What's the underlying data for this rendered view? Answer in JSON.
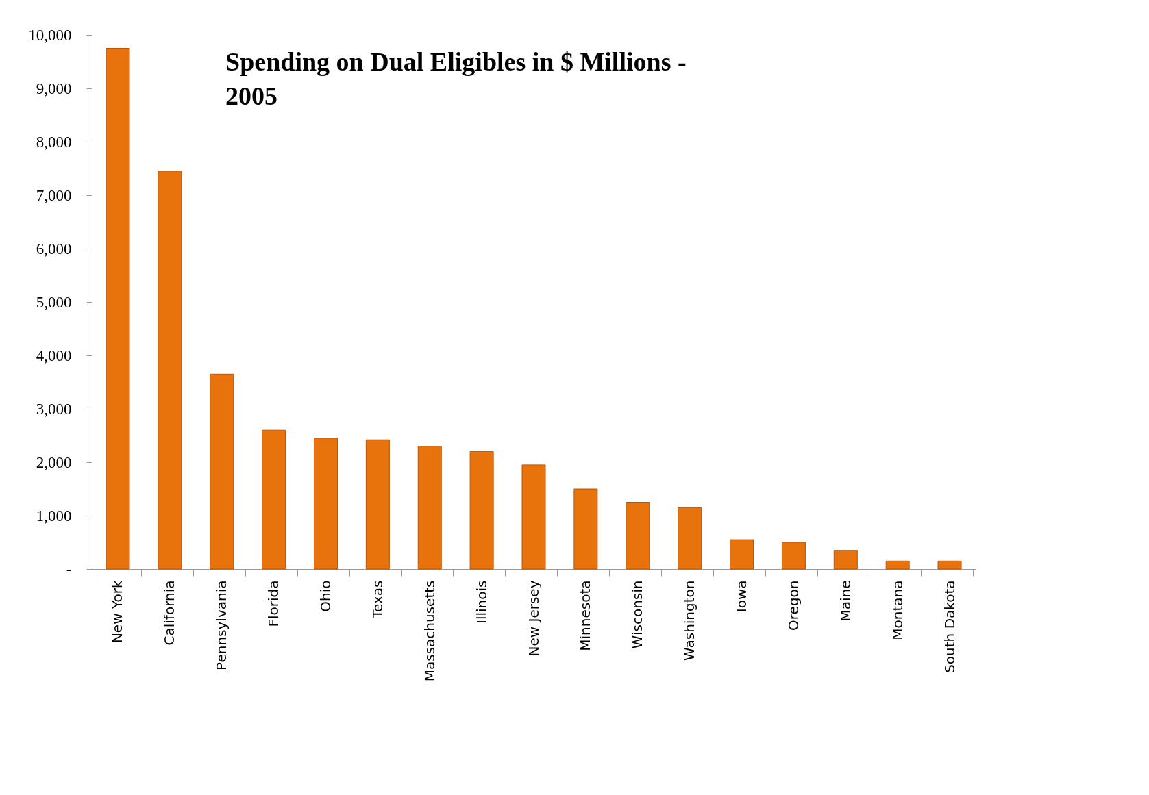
{
  "chart_data": {
    "type": "bar",
    "title": "Spending on Dual Eligibles in $ Millions - 2005",
    "categories": [
      "New York",
      "California",
      "Pennsylvania",
      "Florida",
      "Ohio",
      "Texas",
      "Massachusetts",
      "Illinois",
      "New Jersey",
      "Minnesota",
      "Wisconsin",
      "Washington",
      "Iowa",
      "Oregon",
      "Maine",
      "Montana",
      "South Dakota"
    ],
    "values": [
      9750,
      7450,
      3650,
      2600,
      2450,
      2420,
      2300,
      2200,
      1950,
      1500,
      1250,
      1150,
      550,
      500,
      350,
      150,
      150
    ],
    "color": "#e8720c",
    "ylim": [
      0,
      10000
    ],
    "yticks": [
      {
        "value": 0,
        "label": "-"
      },
      {
        "value": 1000,
        "label": "1,000"
      },
      {
        "value": 2000,
        "label": "2,000"
      },
      {
        "value": 3000,
        "label": "3,000"
      },
      {
        "value": 4000,
        "label": "4,000"
      },
      {
        "value": 5000,
        "label": "5,000"
      },
      {
        "value": 6000,
        "label": "6,000"
      },
      {
        "value": 7000,
        "label": "7,000"
      },
      {
        "value": 8000,
        "label": "8,000"
      },
      {
        "value": 9000,
        "label": "9,000"
      },
      {
        "value": 10000,
        "label": "10,000"
      }
    ],
    "grid": false
  }
}
